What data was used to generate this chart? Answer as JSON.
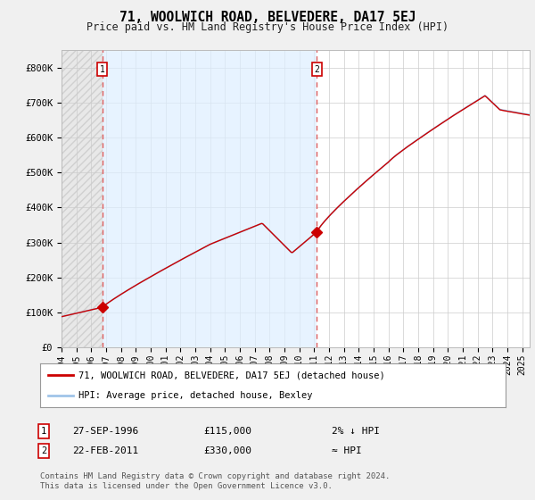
{
  "title": "71, WOOLWICH ROAD, BELVEDERE, DA17 5EJ",
  "subtitle": "Price paid vs. HM Land Registry's House Price Index (HPI)",
  "hpi_label": "HPI: Average price, detached house, Bexley",
  "property_label": "71, WOOLWICH ROAD, BELVEDERE, DA17 5EJ (detached house)",
  "sale1_date": "27-SEP-1996",
  "sale1_price": 115000,
  "sale1_note": "2% ↓ HPI",
  "sale2_date": "22-FEB-2011",
  "sale2_price": 330000,
  "sale2_note": "≈ HPI",
  "ylim": [
    0,
    850000
  ],
  "yticks": [
    0,
    100000,
    200000,
    300000,
    400000,
    500000,
    600000,
    700000,
    800000
  ],
  "ytick_labels": [
    "£0",
    "£100K",
    "£200K",
    "£300K",
    "£400K",
    "£500K",
    "£600K",
    "£700K",
    "£800K"
  ],
  "background_color": "#f0f0f0",
  "plot_bg_color": "#ffffff",
  "grid_color": "#cccccc",
  "hpi_color": "#a0c4e8",
  "property_color": "#cc0000",
  "dashed_line_color": "#e06060",
  "marker_color": "#cc0000",
  "blue_bg_color": "#ddeeff",
  "hatch_color": "#cccccc",
  "footnote": "Contains HM Land Registry data © Crown copyright and database right 2024.\nThis data is licensed under the Open Government Licence v3.0.",
  "sale1_x": 1996.75,
  "sale1_y": 115000,
  "sale2_x": 2011.17,
  "sale2_y": 330000,
  "xlim_start": 1994.0,
  "xlim_end": 2025.5,
  "xtick_years": [
    1994,
    1995,
    1996,
    1997,
    1998,
    1999,
    2000,
    2001,
    2002,
    2003,
    2004,
    2005,
    2006,
    2007,
    2008,
    2009,
    2010,
    2011,
    2012,
    2013,
    2014,
    2015,
    2016,
    2017,
    2018,
    2019,
    2020,
    2021,
    2022,
    2023,
    2024,
    2025
  ]
}
